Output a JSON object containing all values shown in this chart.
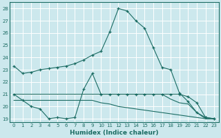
{
  "xlabel": "Humidex (Indice chaleur)",
  "xlim": [
    -0.5,
    23.5
  ],
  "ylim": [
    18.7,
    28.5
  ],
  "yticks": [
    19,
    20,
    21,
    22,
    23,
    24,
    25,
    26,
    27,
    28
  ],
  "xticks": [
    0,
    1,
    2,
    3,
    4,
    5,
    6,
    7,
    8,
    9,
    10,
    11,
    12,
    13,
    14,
    15,
    16,
    17,
    18,
    19,
    20,
    21,
    22,
    23
  ],
  "bg_color": "#cce8ed",
  "grid_color": "#b0d4da",
  "line_color": "#1a6b62",
  "lines": [
    {
      "x": [
        0,
        1,
        2,
        3,
        4,
        5,
        6,
        7,
        8,
        9,
        10,
        11,
        12,
        13,
        14,
        15,
        16,
        17,
        18,
        19,
        20,
        21,
        22,
        23
      ],
      "y": [
        23.3,
        22.7,
        22.8,
        23.0,
        23.1,
        23.2,
        23.3,
        23.5,
        23.8,
        24.2,
        24.5,
        26.1,
        28.0,
        27.8,
        27.0,
        26.4,
        24.8,
        23.2,
        23.0,
        21.1,
        20.4,
        19.5,
        19.1,
        19.0
      ],
      "marker": true
    },
    {
      "x": [
        0,
        1,
        2,
        3,
        4,
        5,
        6,
        7,
        8,
        9,
        10,
        11,
        12,
        13,
        14,
        15,
        16,
        17,
        18,
        19,
        20,
        21,
        22,
        23
      ],
      "y": [
        21.0,
        20.5,
        20.0,
        19.8,
        19.0,
        19.1,
        19.0,
        19.1,
        21.4,
        22.7,
        21.0,
        21.0,
        21.0,
        21.0,
        21.0,
        21.0,
        21.0,
        21.0,
        21.0,
        21.0,
        20.8,
        20.3,
        19.1,
        19.0
      ],
      "marker": true
    },
    {
      "x": [
        0,
        1,
        2,
        3,
        4,
        5,
        6,
        7,
        8,
        9,
        10,
        11,
        12,
        13,
        14,
        15,
        16,
        17,
        18,
        19,
        20,
        21,
        22,
        23
      ],
      "y": [
        21.0,
        21.0,
        21.0,
        21.0,
        21.0,
        21.0,
        21.0,
        21.0,
        21.0,
        21.0,
        21.0,
        21.0,
        21.0,
        21.0,
        21.0,
        21.0,
        21.0,
        21.0,
        20.6,
        20.3,
        20.2,
        19.5,
        19.0,
        19.0
      ],
      "marker": false
    },
    {
      "x": [
        0,
        1,
        2,
        3,
        4,
        5,
        6,
        7,
        8,
        9,
        10,
        11,
        12,
        13,
        14,
        15,
        16,
        17,
        18,
        19,
        20,
        21,
        22,
        23
      ],
      "y": [
        20.5,
        20.5,
        20.5,
        20.5,
        20.5,
        20.5,
        20.5,
        20.5,
        20.5,
        20.5,
        20.3,
        20.2,
        20.0,
        19.9,
        19.8,
        19.7,
        19.6,
        19.5,
        19.4,
        19.3,
        19.2,
        19.1,
        19.0,
        19.0
      ],
      "marker": false
    }
  ]
}
